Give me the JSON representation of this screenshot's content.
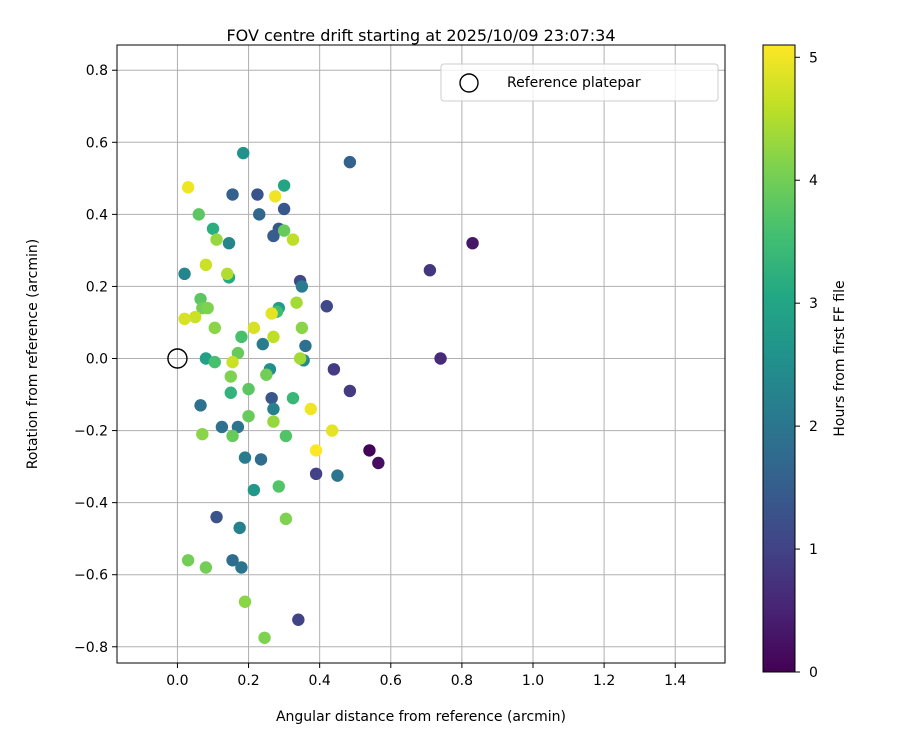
{
  "chart_data": {
    "type": "scatter",
    "title": "FOV centre drift starting at 2025/10/09 23:07:34",
    "xlabel": "Angular distance from reference (arcmin)",
    "ylabel": "Rotation from reference (arcmin)",
    "xlim": [
      -0.17,
      1.54
    ],
    "ylim": [
      -0.845,
      0.87
    ],
    "xticks": [
      0.0,
      0.2,
      0.4,
      0.6,
      0.8,
      1.0,
      1.2,
      1.4
    ],
    "xtick_labels": [
      "0.0",
      "0.2",
      "0.4",
      "0.6",
      "0.8",
      "1.0",
      "1.2",
      "1.4"
    ],
    "yticks": [
      -0.8,
      -0.6,
      -0.4,
      -0.2,
      0.0,
      0.2,
      0.4,
      0.6,
      0.8
    ],
    "ytick_labels": [
      "−0.8",
      "−0.6",
      "−0.4",
      "−0.2",
      "0.0",
      "0.2",
      "0.4",
      "0.6",
      "0.8"
    ],
    "grid": true,
    "legend": {
      "position": "top-right",
      "entries": [
        "Reference platepar"
      ]
    },
    "reference_point": {
      "x": 0.0,
      "y": 0.0,
      "label": "Reference platepar"
    },
    "colorbar": {
      "label": "Hours from first FF file",
      "colormap": "viridis",
      "range": [
        0,
        5.1
      ],
      "ticks": [
        0,
        1,
        2,
        3,
        4,
        5
      ],
      "tick_labels": [
        "0",
        "1",
        "2",
        "3",
        "4",
        "5"
      ]
    },
    "points": [
      {
        "x": 0.54,
        "y": -0.255,
        "c": 0.05
      },
      {
        "x": 0.565,
        "y": -0.29,
        "c": 0.2
      },
      {
        "x": 0.83,
        "y": 0.32,
        "c": 0.3
      },
      {
        "x": 0.74,
        "y": 0.0,
        "c": 0.6
      },
      {
        "x": 0.71,
        "y": 0.245,
        "c": 0.8
      },
      {
        "x": 0.485,
        "y": -0.09,
        "c": 0.9
      },
      {
        "x": 0.44,
        "y": -0.03,
        "c": 0.9
      },
      {
        "x": 0.34,
        "y": -0.725,
        "c": 1.0
      },
      {
        "x": 0.39,
        "y": -0.32,
        "c": 1.0
      },
      {
        "x": 0.345,
        "y": 0.215,
        "c": 1.1
      },
      {
        "x": 0.42,
        "y": 0.145,
        "c": 1.1
      },
      {
        "x": 0.11,
        "y": -0.44,
        "c": 1.3
      },
      {
        "x": 0.225,
        "y": 0.455,
        "c": 1.3
      },
      {
        "x": 0.265,
        "y": -0.11,
        "c": 1.4
      },
      {
        "x": 0.3,
        "y": 0.415,
        "c": 1.4
      },
      {
        "x": 0.285,
        "y": 0.36,
        "c": 1.4
      },
      {
        "x": 0.27,
        "y": 0.34,
        "c": 1.5
      },
      {
        "x": 0.155,
        "y": 0.455,
        "c": 1.6
      },
      {
        "x": 0.485,
        "y": 0.545,
        "c": 1.6
      },
      {
        "x": 0.23,
        "y": 0.4,
        "c": 1.7
      },
      {
        "x": 0.235,
        "y": -0.28,
        "c": 1.8
      },
      {
        "x": 0.155,
        "y": -0.56,
        "c": 1.8
      },
      {
        "x": 0.065,
        "y": -0.13,
        "c": 1.9
      },
      {
        "x": 0.125,
        "y": -0.19,
        "c": 1.9
      },
      {
        "x": 0.36,
        "y": 0.035,
        "c": 1.9
      },
      {
        "x": 0.18,
        "y": -0.58,
        "c": 2.0
      },
      {
        "x": 0.17,
        "y": -0.19,
        "c": 2.0
      },
      {
        "x": 0.45,
        "y": -0.325,
        "c": 2.0
      },
      {
        "x": 0.19,
        "y": -0.275,
        "c": 2.1
      },
      {
        "x": 0.24,
        "y": 0.04,
        "c": 2.1
      },
      {
        "x": 0.35,
        "y": 0.2,
        "c": 2.1
      },
      {
        "x": 0.175,
        "y": -0.47,
        "c": 2.2
      },
      {
        "x": 0.27,
        "y": -0.14,
        "c": 2.2
      },
      {
        "x": 0.02,
        "y": 0.235,
        "c": 2.3
      },
      {
        "x": 0.145,
        "y": 0.32,
        "c": 2.3
      },
      {
        "x": 0.355,
        "y": -0.005,
        "c": 2.4
      },
      {
        "x": 0.26,
        "y": -0.03,
        "c": 2.5
      },
      {
        "x": 0.185,
        "y": 0.57,
        "c": 2.6
      },
      {
        "x": 0.215,
        "y": -0.365,
        "c": 2.7
      },
      {
        "x": 0.285,
        "y": 0.14,
        "c": 2.8
      },
      {
        "x": 0.08,
        "y": 0.0,
        "c": 2.9
      },
      {
        "x": 0.3,
        "y": 0.48,
        "c": 3.0
      },
      {
        "x": 0.145,
        "y": 0.225,
        "c": 3.1
      },
      {
        "x": 0.1,
        "y": 0.36,
        "c": 3.2
      },
      {
        "x": 0.15,
        "y": -0.095,
        "c": 3.3
      },
      {
        "x": 0.325,
        "y": -0.11,
        "c": 3.4
      },
      {
        "x": 0.28,
        "y": 0.13,
        "c": 3.5
      },
      {
        "x": 0.105,
        "y": -0.01,
        "c": 3.6
      },
      {
        "x": 0.18,
        "y": 0.06,
        "c": 3.6
      },
      {
        "x": 0.285,
        "y": -0.355,
        "c": 3.7
      },
      {
        "x": 0.305,
        "y": -0.215,
        "c": 3.7
      },
      {
        "x": 0.065,
        "y": 0.165,
        "c": 3.8
      },
      {
        "x": 0.06,
        "y": 0.4,
        "c": 3.8
      },
      {
        "x": 0.2,
        "y": -0.085,
        "c": 3.8
      },
      {
        "x": 0.155,
        "y": -0.215,
        "c": 3.9
      },
      {
        "x": 0.2,
        "y": -0.16,
        "c": 3.9
      },
      {
        "x": 0.3,
        "y": 0.355,
        "c": 3.9
      },
      {
        "x": 0.17,
        "y": 0.015,
        "c": 3.9
      },
      {
        "x": 0.03,
        "y": -0.56,
        "c": 4.0
      },
      {
        "x": 0.08,
        "y": -0.58,
        "c": 4.0
      },
      {
        "x": 0.07,
        "y": 0.14,
        "c": 4.0
      },
      {
        "x": 0.25,
        "y": -0.045,
        "c": 4.0
      },
      {
        "x": 0.245,
        "y": -0.775,
        "c": 4.1
      },
      {
        "x": 0.305,
        "y": -0.445,
        "c": 4.1
      },
      {
        "x": 0.085,
        "y": 0.14,
        "c": 4.1
      },
      {
        "x": 0.15,
        "y": -0.05,
        "c": 4.1
      },
      {
        "x": 0.07,
        "y": -0.21,
        "c": 4.2
      },
      {
        "x": 0.19,
        "y": -0.675,
        "c": 4.2
      },
      {
        "x": 0.105,
        "y": 0.085,
        "c": 4.2
      },
      {
        "x": 0.35,
        "y": 0.085,
        "c": 4.2
      },
      {
        "x": 0.27,
        "y": -0.175,
        "c": 4.3
      },
      {
        "x": 0.11,
        "y": 0.33,
        "c": 4.3
      },
      {
        "x": 0.335,
        "y": 0.155,
        "c": 4.4
      },
      {
        "x": 0.345,
        "y": 0.0,
        "c": 4.4
      },
      {
        "x": 0.14,
        "y": 0.235,
        "c": 4.5
      },
      {
        "x": 0.27,
        "y": 0.06,
        "c": 4.6
      },
      {
        "x": 0.325,
        "y": 0.33,
        "c": 4.6
      },
      {
        "x": 0.08,
        "y": 0.26,
        "c": 4.7
      },
      {
        "x": 0.155,
        "y": -0.01,
        "c": 4.7
      },
      {
        "x": 0.05,
        "y": 0.115,
        "c": 4.7
      },
      {
        "x": 0.02,
        "y": 0.11,
        "c": 4.8
      },
      {
        "x": 0.215,
        "y": 0.085,
        "c": 4.8
      },
      {
        "x": 0.265,
        "y": 0.125,
        "c": 4.9
      },
      {
        "x": 0.435,
        "y": -0.2,
        "c": 4.9
      },
      {
        "x": 0.03,
        "y": 0.475,
        "c": 5.0
      },
      {
        "x": 0.275,
        "y": 0.45,
        "c": 5.0
      },
      {
        "x": 0.375,
        "y": -0.14,
        "c": 5.0
      },
      {
        "x": 0.39,
        "y": -0.255,
        "c": 5.1
      }
    ]
  }
}
